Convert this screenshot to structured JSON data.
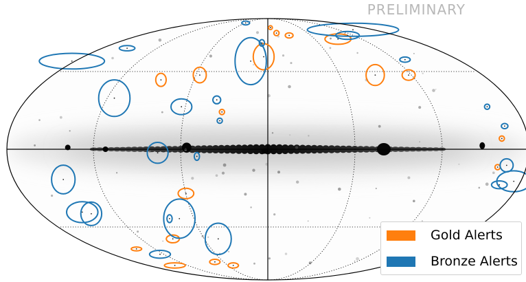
{
  "watermark": "PRELIMINARY",
  "chart_data": {
    "type": "scatter",
    "projection": "mollweide",
    "coordinates": "galactic",
    "background": "Fermi all-sky gamma-ray counts map (inverted grayscale)",
    "grid": {
      "longitude_lines_deg": [
        -90,
        0,
        90
      ],
      "latitude_lines_deg": [
        -45,
        0,
        45
      ],
      "style": "dotted"
    },
    "legend": {
      "placement": "bottom-right",
      "entries": [
        {
          "label": "Gold Alerts",
          "color": "#ff7f0e"
        },
        {
          "label": "Bronze Alerts",
          "color": "#1f77b4"
        }
      ]
    },
    "series": [
      {
        "name": "Gold Alerts",
        "color": "#ff7f0e",
        "points": [
          {
            "l": -5,
            "b": 78,
            "a": 1.5,
            "r": 1.5
          },
          {
            "l": -13,
            "b": 73,
            "a": 2,
            "r": 2
          },
          {
            "l": -30,
            "b": 71,
            "a": 3,
            "r": 2
          },
          {
            "l": -90,
            "b": 68,
            "a": 10,
            "r": 4
          },
          {
            "l": 4,
            "b": 55,
            "a": 8,
            "r": 10
          },
          {
            "l": 57,
            "b": 43,
            "a": 5,
            "r": 6
          },
          {
            "l": 87,
            "b": 40,
            "a": 4,
            "r": 5
          },
          {
            "l": -90,
            "b": 43,
            "a": 7,
            "r": 8
          },
          {
            "l": -118,
            "b": 43,
            "a": 5,
            "r": 4
          },
          {
            "l": 33,
            "b": 21,
            "a": 2,
            "r": 2
          },
          {
            "l": -162,
            "b": 6,
            "a": 2,
            "r": 2
          },
          {
            "l": -160,
            "b": -10,
            "a": 2,
            "r": 2
          },
          {
            "l": 60,
            "b": -25,
            "a": 6,
            "r": 4
          },
          {
            "l": 90,
            "b": -53,
            "a": 5,
            "r": 3
          },
          {
            "l": 140,
            "b": -60,
            "a": 4,
            "r": 1.5
          },
          {
            "l": 140,
            "b": -73,
            "a": 8,
            "r": 2
          },
          {
            "l": 72,
            "b": -70,
            "a": 4,
            "r": 2
          },
          {
            "l": 52,
            "b": -73,
            "a": 4,
            "r": 2
          }
        ]
      },
      {
        "name": "Bronze Alerts",
        "color": "#1f77b4",
        "points": [
          {
            "l": 59,
            "b": 83,
            "a": 3,
            "r": 1.5
          },
          {
            "l": 7,
            "b": 65,
            "a": 2,
            "r": 2.5
          },
          {
            "l": 16,
            "b": 52,
            "a": 12,
            "r": 18
          },
          {
            "l": 153,
            "b": 61,
            "a": 6,
            "r": 2
          },
          {
            "l": -112,
            "b": 71,
            "a": 9,
            "r": 3
          },
          {
            "l": -130,
            "b": 53,
            "a": 4,
            "r": 2
          },
          {
            "l": -145,
            "b": 76,
            "a": 35,
            "r": 5
          },
          {
            "l": 183,
            "b": 52,
            "a": 25,
            "r": 6
          },
          {
            "l": 38,
            "b": 28,
            "a": 3,
            "r": 3
          },
          {
            "l": 63,
            "b": 24,
            "a": 8,
            "r": 6
          },
          {
            "l": 115,
            "b": 29,
            "a": 12,
            "r": 14
          },
          {
            "l": 34,
            "b": 16,
            "a": 2,
            "r": 2
          },
          {
            "l": -160,
            "b": 24,
            "a": 2,
            "r": 2
          },
          {
            "l": -166,
            "b": 13,
            "a": 2.5,
            "r": 2
          },
          {
            "l": 76,
            "b": -2,
            "a": 8,
            "r": 8
          },
          {
            "l": 49,
            "b": -4,
            "a": 2,
            "r": 3
          },
          {
            "l": -166,
            "b": -9,
            "a": 5,
            "r": 5
          },
          {
            "l": -166,
            "b": -20,
            "a": 6,
            "r": 3
          },
          {
            "l": -175,
            "b": -18,
            "a": 13,
            "r": 8
          },
          {
            "l": 145,
            "b": -17,
            "a": 9,
            "r": 11
          },
          {
            "l": 140,
            "b": -37,
            "a": 8,
            "r": 9
          },
          {
            "l": 146,
            "b": -36,
            "a": 12,
            "r": 8
          },
          {
            "l": 72,
            "b": -40,
            "a": 12,
            "r": 15
          },
          {
            "l": 47,
            "b": -53,
            "a": 10,
            "r": 12
          },
          {
            "l": 80,
            "b": -40,
            "a": 2,
            "r": 3
          },
          {
            "l": 125,
            "b": -64,
            "a": 8,
            "r": 3
          }
        ]
      }
    ]
  }
}
